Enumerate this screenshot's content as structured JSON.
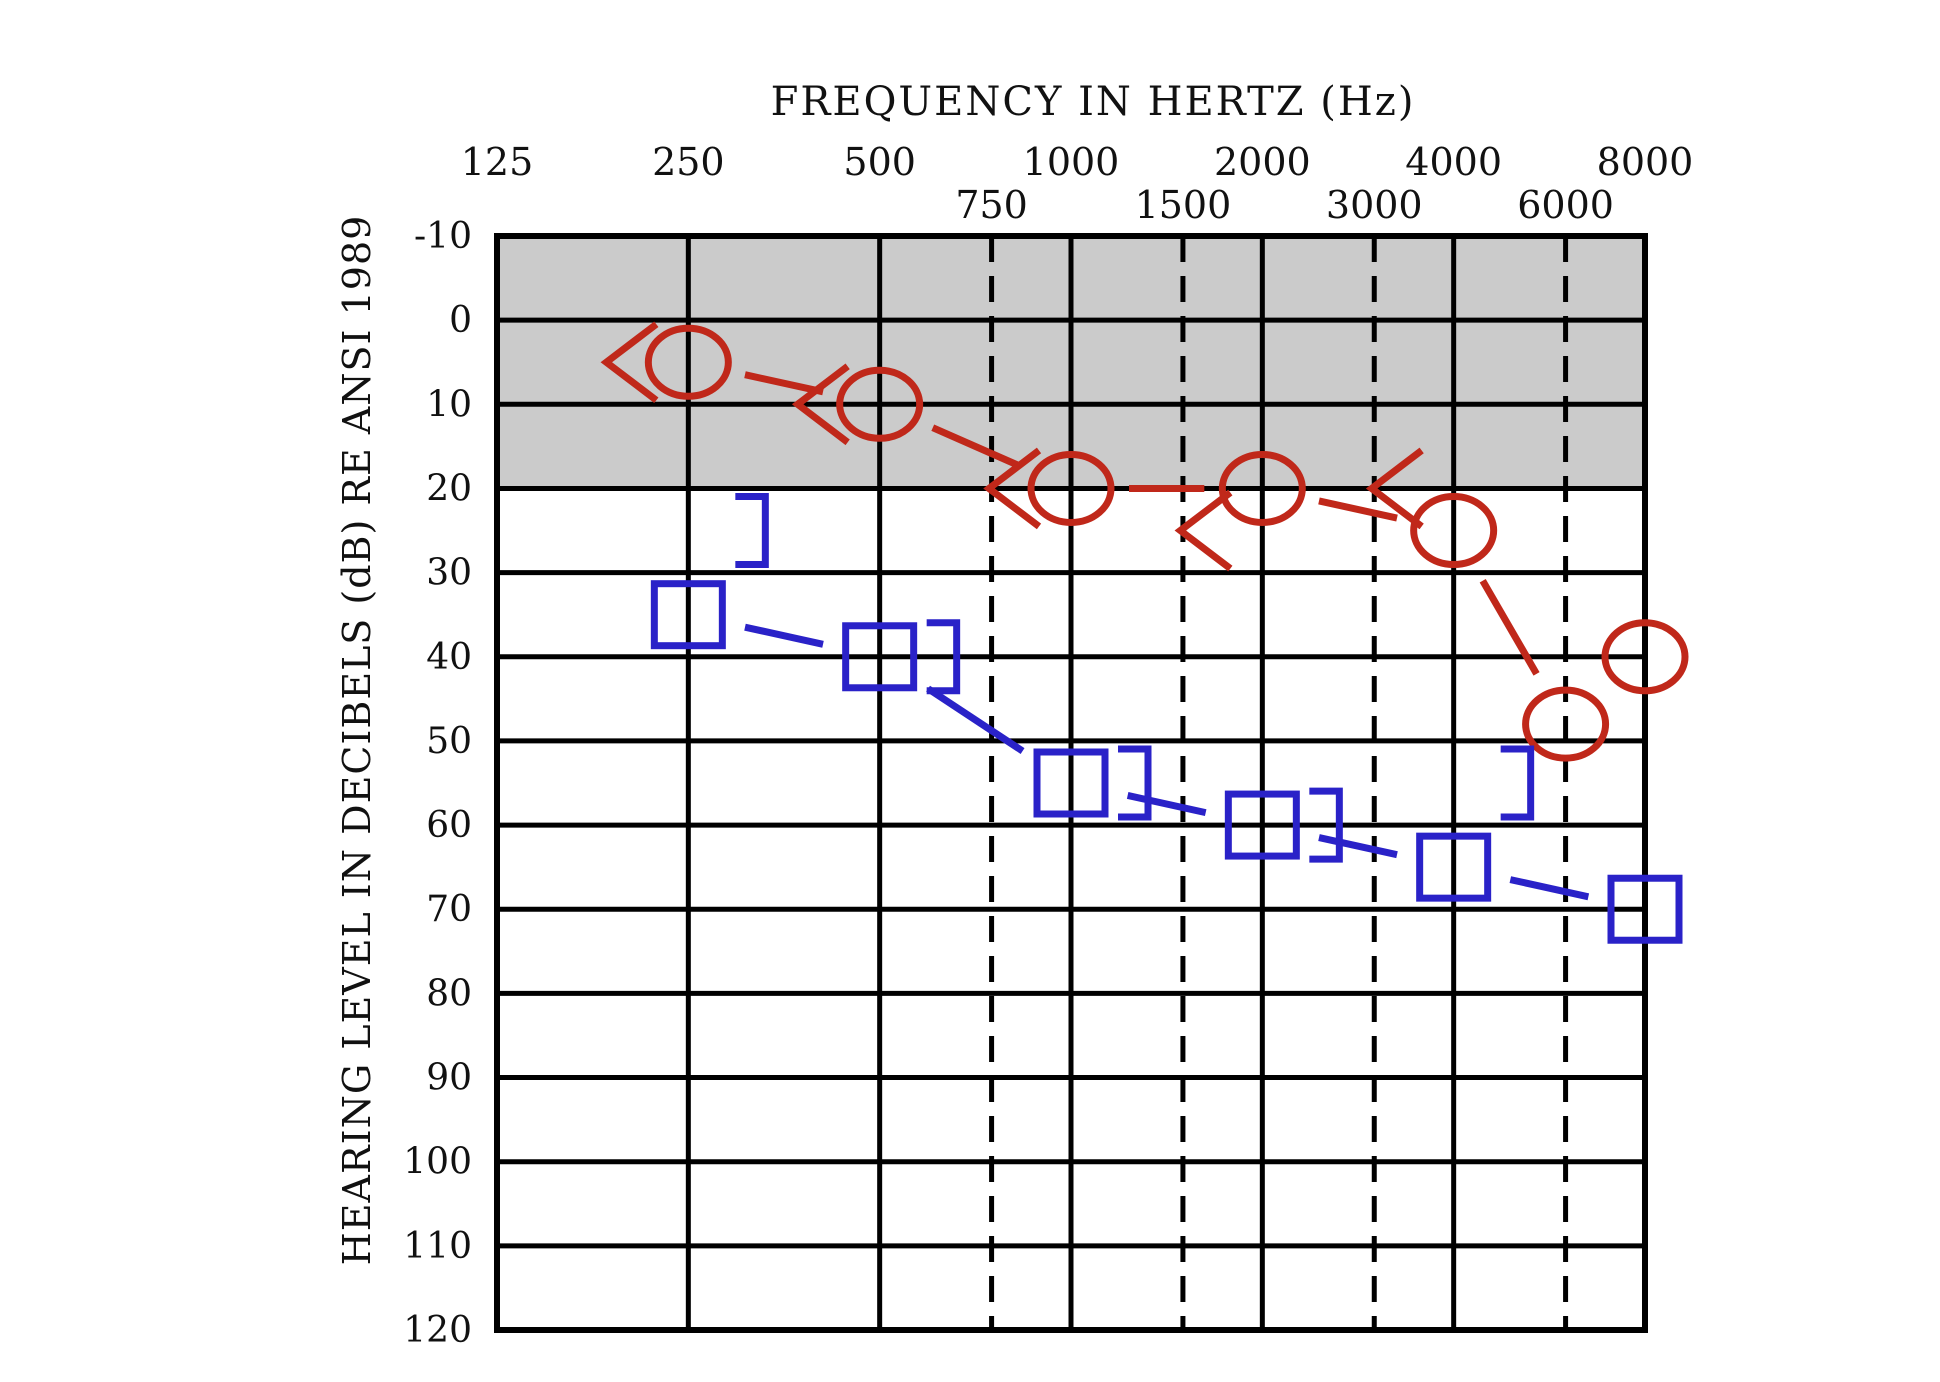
{
  "chart_data": {
    "type": "scatter",
    "title": "FREQUENCY IN HERTZ (Hz)",
    "xlabel": "FREQUENCY IN HERTZ (Hz)",
    "ylabel": "HEARING LEVEL IN DECIBELS (dB) RE ANSI 1989",
    "x_scale": "log2",
    "x_ticks_major": [
      "125",
      "250",
      "500",
      "1000",
      "2000",
      "4000",
      "8000"
    ],
    "x_ticks_inter": [
      "750",
      "1500",
      "3000",
      "6000"
    ],
    "y_ticks": [
      "-10",
      "0",
      "10",
      "20",
      "30",
      "40",
      "50",
      "60",
      "70",
      "80",
      "90",
      "100",
      "110",
      "120"
    ],
    "ylim": [
      -10,
      120
    ],
    "xlim": [
      125,
      8000
    ],
    "y_inverted": true,
    "shaded_band": [
      -10,
      20
    ],
    "grid": true,
    "colors": {
      "right": "#c0281a",
      "left": "#2a22c8",
      "band": "#cbcbcb"
    },
    "series": [
      {
        "symbol": "circle",
        "color": "#c0281a",
        "connected": true,
        "points": [
          [
            250,
            5
          ],
          [
            500,
            10
          ],
          [
            1000,
            20
          ],
          [
            2000,
            20
          ],
          [
            4000,
            25
          ],
          [
            6000,
            48
          ],
          [
            8000,
            40
          ]
        ]
      },
      {
        "symbol": "chevron-left",
        "color": "#c0281a",
        "connected": false,
        "points": [
          [
            250,
            5
          ],
          [
            500,
            10
          ],
          [
            1000,
            20
          ],
          [
            2000,
            25
          ],
          [
            4000,
            20
          ]
        ]
      },
      {
        "symbol": "square",
        "color": "#2a22c8",
        "connected": true,
        "points": [
          [
            250,
            35
          ],
          [
            500,
            40
          ],
          [
            1000,
            55
          ],
          [
            2000,
            60
          ],
          [
            4000,
            65
          ],
          [
            8000,
            70
          ]
        ]
      },
      {
        "symbol": "bracket-right",
        "color": "#2a22c8",
        "connected": false,
        "points": [
          [
            250,
            25
          ],
          [
            500,
            40
          ],
          [
            1000,
            55
          ],
          [
            2000,
            60
          ],
          [
            4000,
            55
          ]
        ]
      }
    ]
  }
}
